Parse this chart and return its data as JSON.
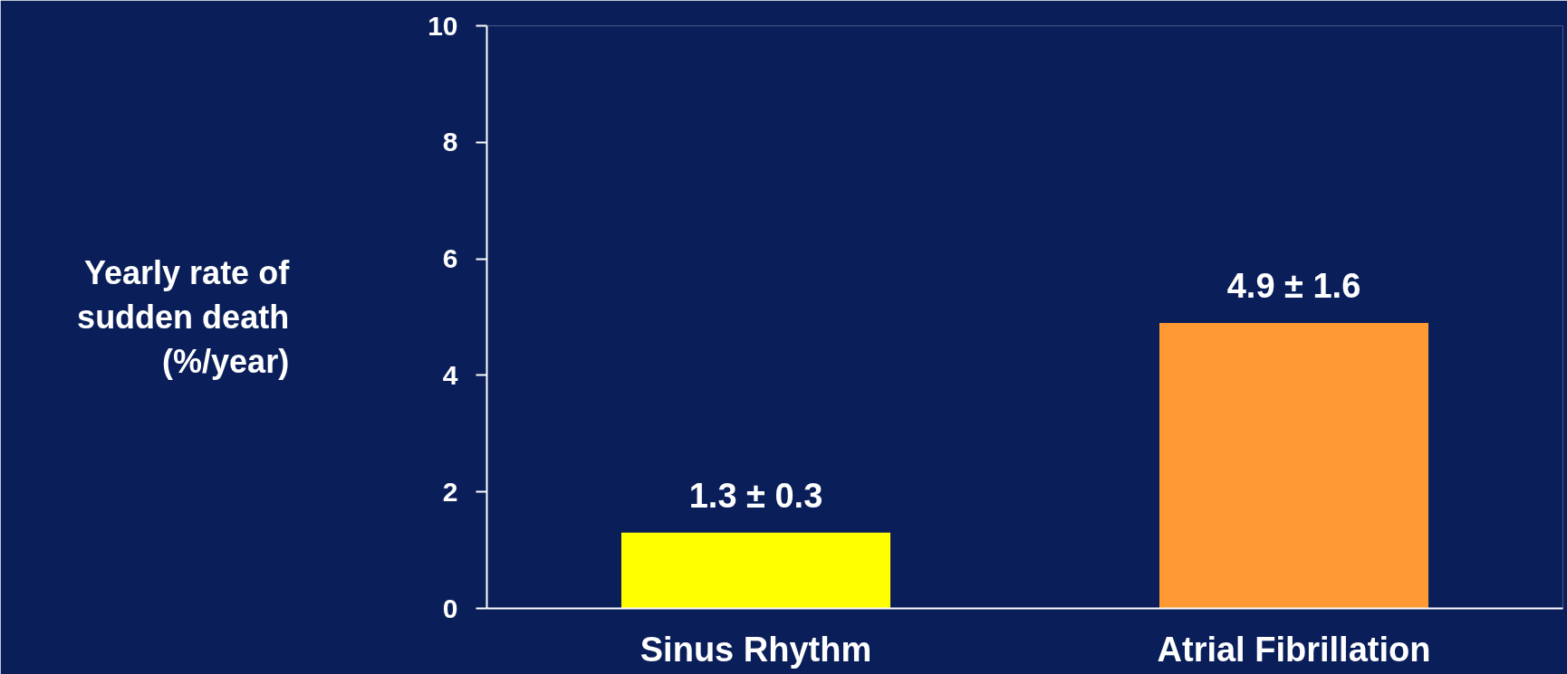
{
  "chart_data": {
    "type": "bar",
    "ylabel": "Yearly rate of sudden death (%/year)",
    "categories": [
      "Sinus Rhythm",
      "Atrial Fibrillation"
    ],
    "values": [
      1.3,
      4.9
    ],
    "colors": [
      "#ffff00",
      "#ff9933"
    ],
    "value_labels": [
      "1.3 ± 0.3",
      "4.9 ± 1.6"
    ],
    "ylim": [
      0,
      10
    ],
    "yticks": [
      0,
      2,
      4,
      6,
      8,
      10
    ],
    "grid": false
  }
}
